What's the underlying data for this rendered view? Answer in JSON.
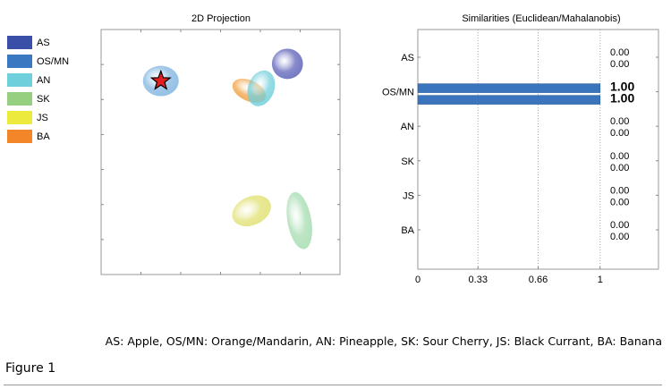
{
  "legend": {
    "items": [
      {
        "key": "AS",
        "color": "#3a4fa8"
      },
      {
        "key": "OS/MN",
        "color": "#3a78c2"
      },
      {
        "key": "AN",
        "color": "#6fcfdb"
      },
      {
        "key": "SK",
        "color": "#97cf80"
      },
      {
        "key": "JS",
        "color": "#ecea3c"
      },
      {
        "key": "BA",
        "color": "#f4862a"
      }
    ]
  },
  "chart_data": [
    {
      "type": "scatter",
      "title": "2D Projection",
      "xlabel": "",
      "ylabel": "",
      "grid": false,
      "note": "Confidence ellipses per class in unitless projection coordinates (0-1 scaled); query point marked with red star inside OS/MN.",
      "xlim": [
        0,
        1
      ],
      "ylim": [
        0,
        1
      ],
      "ellipses": [
        {
          "name": "AS",
          "cx": 0.78,
          "cy": 0.86,
          "rx": 0.065,
          "ry": 0.062,
          "angle": 0,
          "color": "#5a5fb8"
        },
        {
          "name": "BA",
          "cx": 0.62,
          "cy": 0.75,
          "rx": 0.075,
          "ry": 0.042,
          "angle": 25,
          "color": "#f0a040"
        },
        {
          "name": "AN",
          "cx": 0.67,
          "cy": 0.76,
          "rx": 0.055,
          "ry": 0.075,
          "angle": 20,
          "color": "#6fcfdb"
        },
        {
          "name": "OS/MN",
          "cx": 0.25,
          "cy": 0.79,
          "rx": 0.075,
          "ry": 0.062,
          "angle": 0,
          "color": "#7fb4e0"
        },
        {
          "name": "JS",
          "cx": 0.63,
          "cy": 0.26,
          "rx": 0.085,
          "ry": 0.058,
          "angle": -25,
          "color": "#e0e070"
        },
        {
          "name": "SK",
          "cx": 0.83,
          "cy": 0.22,
          "rx": 0.05,
          "ry": 0.118,
          "angle": -10,
          "color": "#a5dcb0"
        }
      ],
      "marker": {
        "name": "query",
        "x": 0.25,
        "y": 0.79,
        "shape": "star",
        "color": "#e02020"
      }
    },
    {
      "type": "bar",
      "orientation": "horizontal",
      "title": "Similarities (Euclidean/Mahalanobis)",
      "categories": [
        "AS",
        "OS/MN",
        "AN",
        "SK",
        "JS",
        "BA"
      ],
      "series": [
        {
          "name": "Euclidean",
          "values": [
            0.0,
            1.0,
            0.0,
            0.0,
            0.0,
            0.0
          ]
        },
        {
          "name": "Mahalanobis",
          "values": [
            0.0,
            1.0,
            0.0,
            0.0,
            0.0,
            0.0
          ]
        }
      ],
      "labels": [
        [
          "0.00",
          "0.00"
        ],
        [
          "1.00",
          "1.00"
        ],
        [
          "0.00",
          "0.00"
        ],
        [
          "0.00",
          "0.00"
        ],
        [
          "0.00",
          "0.00"
        ],
        [
          "0.00",
          "0.00"
        ]
      ],
      "bar_color": "#3a74bd",
      "xticks": [
        "0",
        "0.33",
        "0.66",
        "1"
      ],
      "xtick_values": [
        0,
        0.33,
        0.66,
        1
      ],
      "xlim": [
        0,
        1.32
      ],
      "grid": "vertical-dotted"
    }
  ],
  "caption": "AS: Apple, OS/MN: Orange/Mandarin, AN: Pineapple, SK: Sour Cherry, JS: Black Currant, BA: Banana",
  "figure_label": "Figure 1"
}
